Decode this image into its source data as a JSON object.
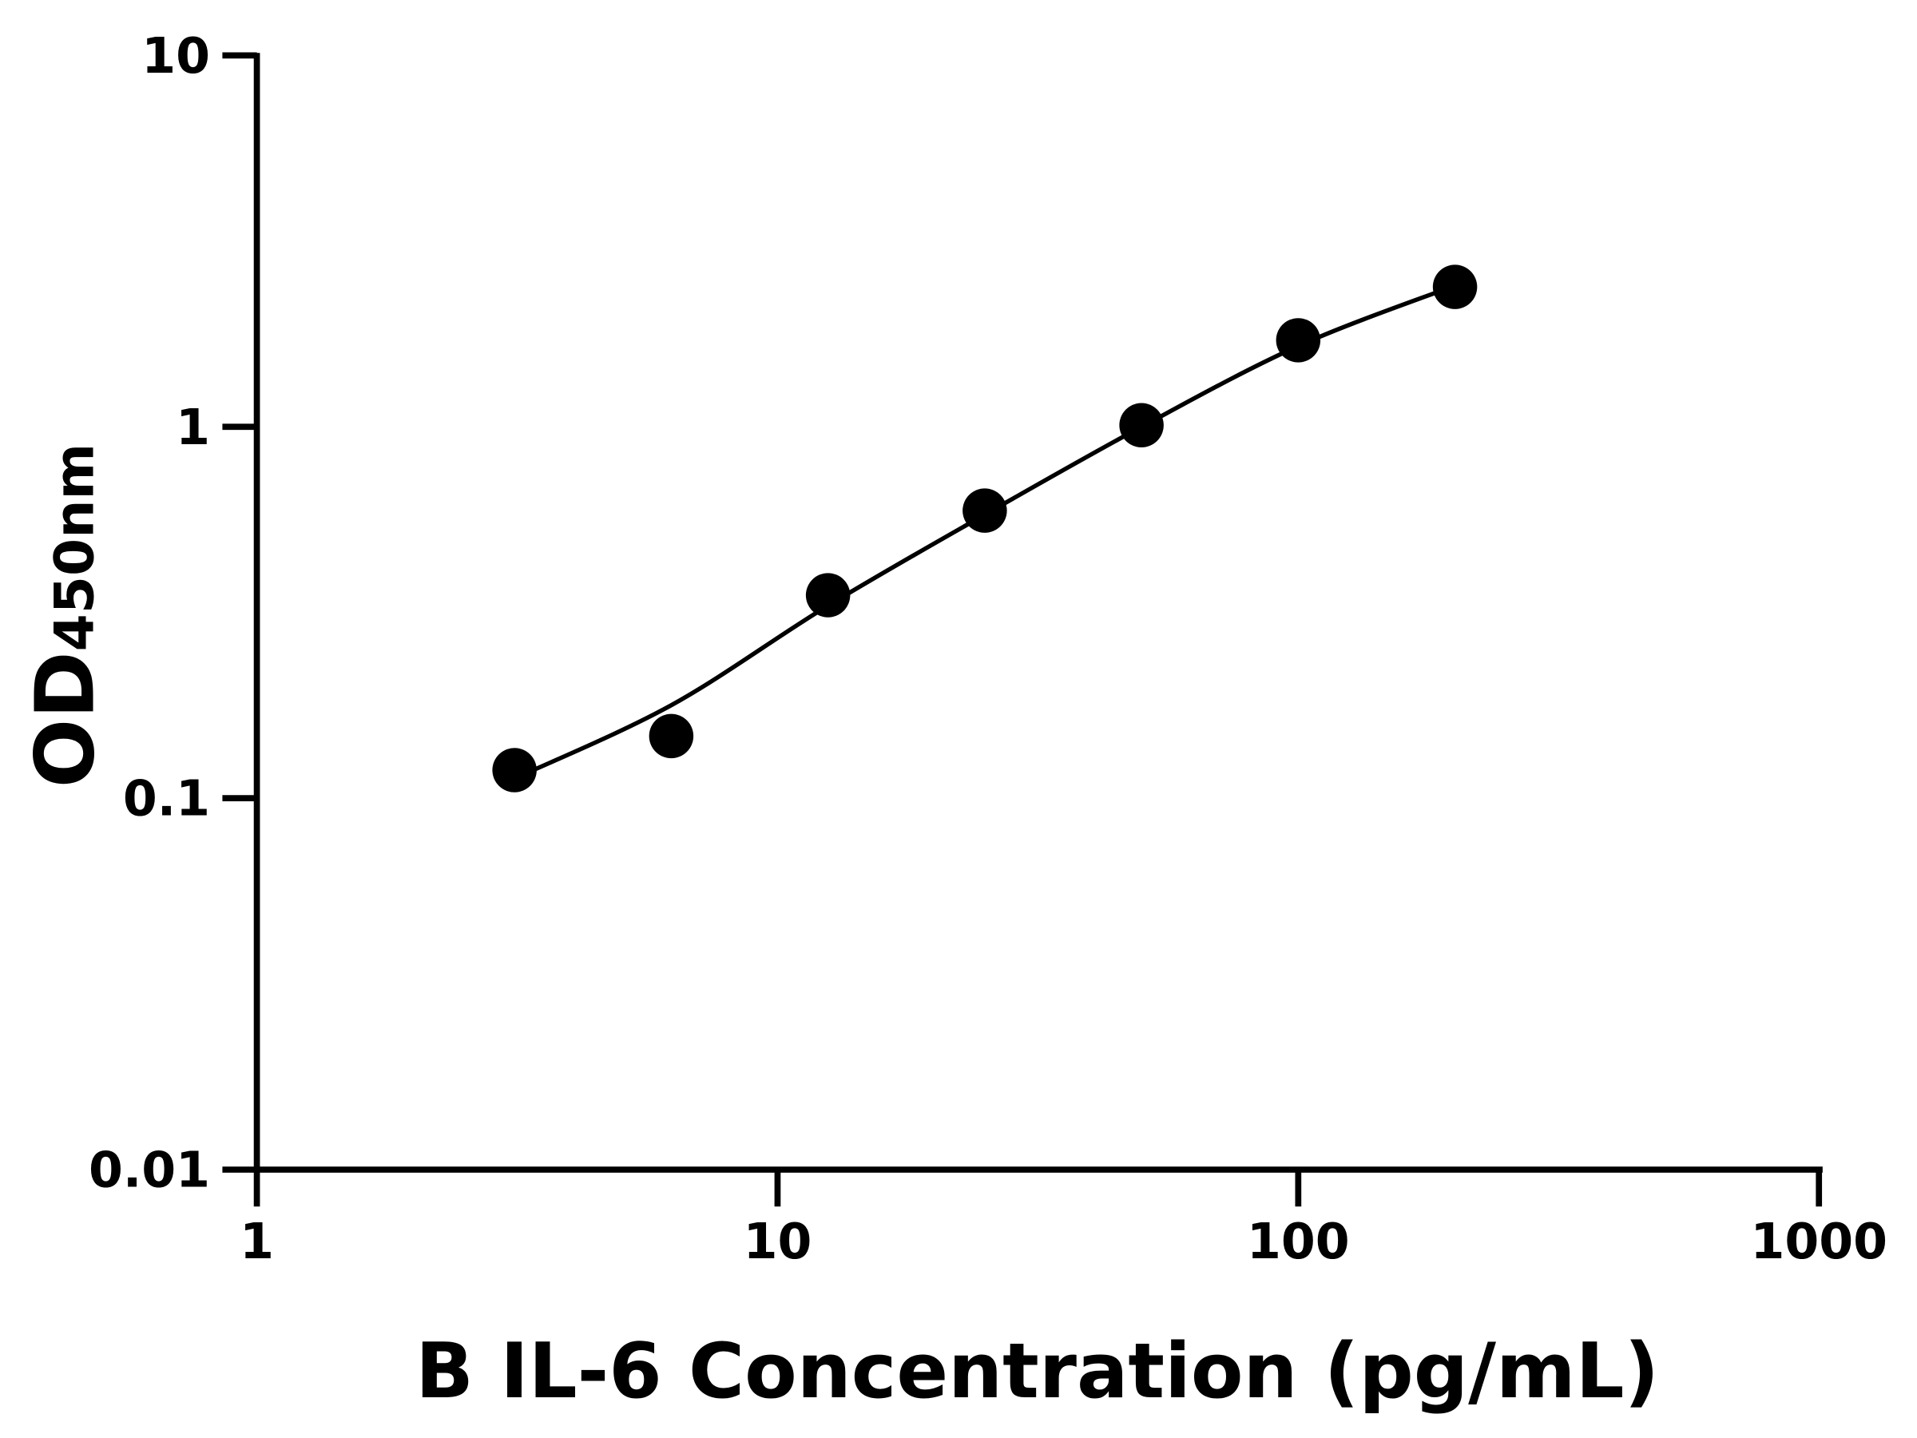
{
  "chart_data": {
    "type": "scatter",
    "xlabel": "B IL-6 Concentration (pg/mL)",
    "ylabel_main": "OD",
    "ylabel_sub": "450nm",
    "x_scale": "log",
    "y_scale": "log",
    "xlim": [
      1,
      1000
    ],
    "ylim": [
      0.01,
      10
    ],
    "x_ticks": [
      "1",
      "10",
      "100",
      "1000"
    ],
    "y_ticks": [
      "0.01",
      "0.1",
      "1",
      "10"
    ],
    "grid": false,
    "points": {
      "x": [
        3.125,
        6.25,
        12.5,
        25,
        50,
        100,
        200
      ],
      "y": [
        0.119,
        0.147,
        0.352,
        0.595,
        1.01,
        1.71,
        2.38
      ]
    },
    "fit_curve": {
      "x": [
        3.125,
        6.25,
        12.5,
        25,
        50,
        100,
        200
      ],
      "y": [
        0.113,
        0.178,
        0.33,
        0.58,
        1.0,
        1.65,
        2.4
      ]
    },
    "colors": {
      "points": "#000000",
      "curve": "#000000",
      "axes": "#000000"
    }
  }
}
